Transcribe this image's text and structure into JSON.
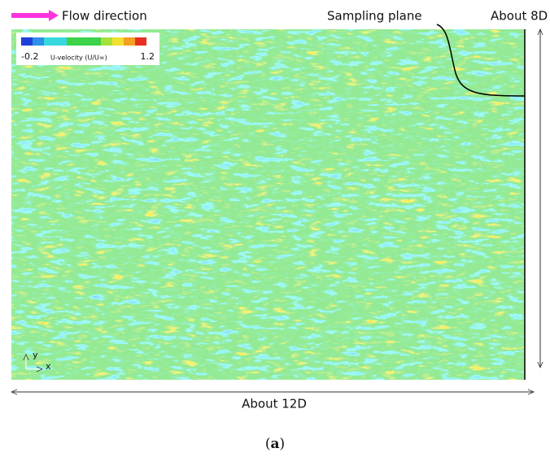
{
  "labels": {
    "flow_direction": "Flow direction",
    "sampling_plane": "Sampling plane",
    "height": "About 8D",
    "length": "About 12D",
    "caption_open": "(",
    "caption_letter": "a",
    "caption_close": ")"
  },
  "colorbar": {
    "title": "U-velocity (U/U∞)",
    "min": -0.2,
    "max": 1.2
  },
  "axes": {
    "x": "x",
    "y": "y"
  }
}
